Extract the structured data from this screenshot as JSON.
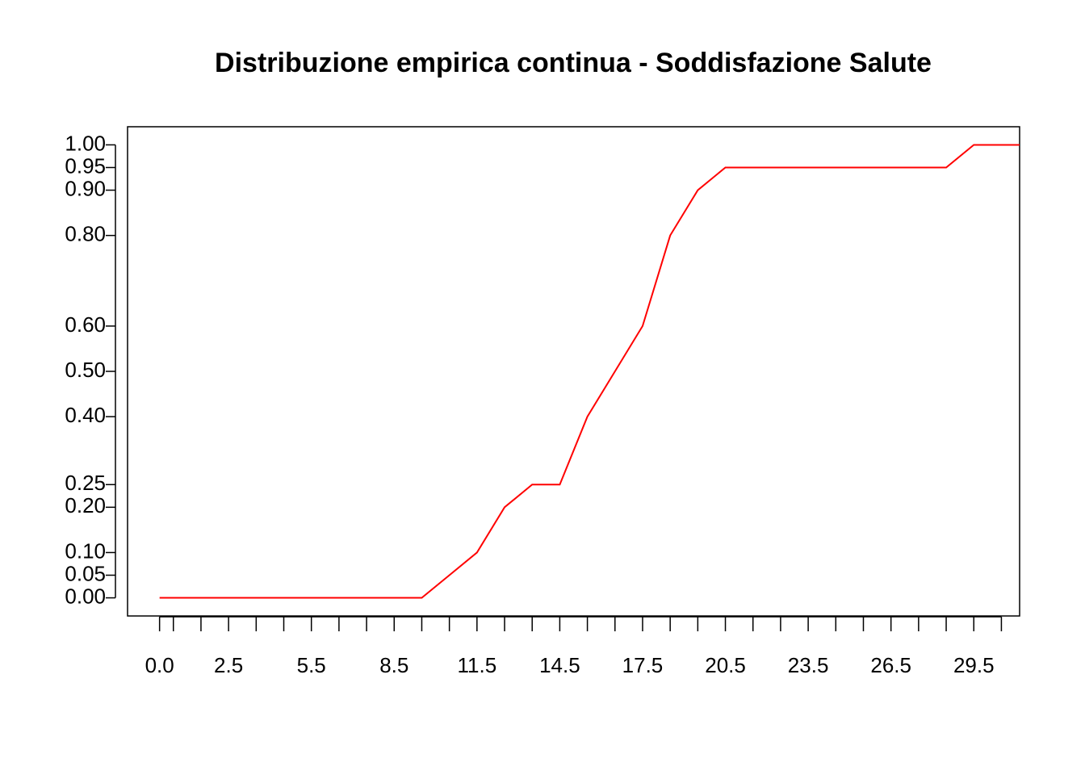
{
  "chart_data": {
    "type": "line",
    "title": "Distribuzione empirica continua - Soddisfazione Salute",
    "x": [
      0,
      9.5,
      10.5,
      11.5,
      12.5,
      13.5,
      14.5,
      15.5,
      16.5,
      17.5,
      18.5,
      19.5,
      20.5,
      28.5,
      29.5,
      30.5,
      31.5
    ],
    "series": [
      {
        "color": "#ff0000",
        "values": [
          0,
          0,
          0.05,
          0.1,
          0.2,
          0.25,
          0.25,
          0.4,
          0.5,
          0.6,
          0.8,
          0.9,
          0.95,
          0.95,
          1,
          1,
          1
        ]
      }
    ],
    "xlim": [
      -1.16,
      31.16
    ],
    "ylim": [
      -0.04,
      1.04
    ],
    "xticks": [
      {
        "value": 0,
        "label": "0.0"
      },
      {
        "value": 0.5,
        "label": null
      },
      {
        "value": 1.5,
        "label": null
      },
      {
        "value": 2.5,
        "label": "2.5"
      },
      {
        "value": 3.5,
        "label": null
      },
      {
        "value": 4.5,
        "label": null
      },
      {
        "value": 5.5,
        "label": "5.5"
      },
      {
        "value": 6.5,
        "label": null
      },
      {
        "value": 7.5,
        "label": null
      },
      {
        "value": 8.5,
        "label": "8.5"
      },
      {
        "value": 9.5,
        "label": null
      },
      {
        "value": 10.5,
        "label": null
      },
      {
        "value": 11.5,
        "label": "11.5"
      },
      {
        "value": 12.5,
        "label": null
      },
      {
        "value": 13.5,
        "label": null
      },
      {
        "value": 14.5,
        "label": "14.5"
      },
      {
        "value": 15.5,
        "label": null
      },
      {
        "value": 16.5,
        "label": null
      },
      {
        "value": 17.5,
        "label": "17.5"
      },
      {
        "value": 18.5,
        "label": null
      },
      {
        "value": 19.5,
        "label": null
      },
      {
        "value": 20.5,
        "label": "20.5"
      },
      {
        "value": 21.5,
        "label": null
      },
      {
        "value": 22.5,
        "label": null
      },
      {
        "value": 23.5,
        "label": "23.5"
      },
      {
        "value": 24.5,
        "label": null
      },
      {
        "value": 25.5,
        "label": null
      },
      {
        "value": 26.5,
        "label": "26.5"
      },
      {
        "value": 27.5,
        "label": null
      },
      {
        "value": 28.5,
        "label": null
      },
      {
        "value": 29.5,
        "label": "29.5"
      },
      {
        "value": 30.5,
        "label": null
      }
    ],
    "yticks": [
      {
        "value": 0,
        "label": "0.00"
      },
      {
        "value": 0.05,
        "label": "0.05"
      },
      {
        "value": 0.1,
        "label": "0.10"
      },
      {
        "value": 0.2,
        "label": "0.20"
      },
      {
        "value": 0.25,
        "label": "0.25"
      },
      {
        "value": 0.4,
        "label": "0.40"
      },
      {
        "value": 0.5,
        "label": "0.50"
      },
      {
        "value": 0.6,
        "label": "0.60"
      },
      {
        "value": 0.8,
        "label": "0.80"
      },
      {
        "value": 0.9,
        "label": "0.90"
      },
      {
        "value": 0.95,
        "label": "0.95"
      },
      {
        "value": 1,
        "label": "1.00"
      }
    ]
  }
}
